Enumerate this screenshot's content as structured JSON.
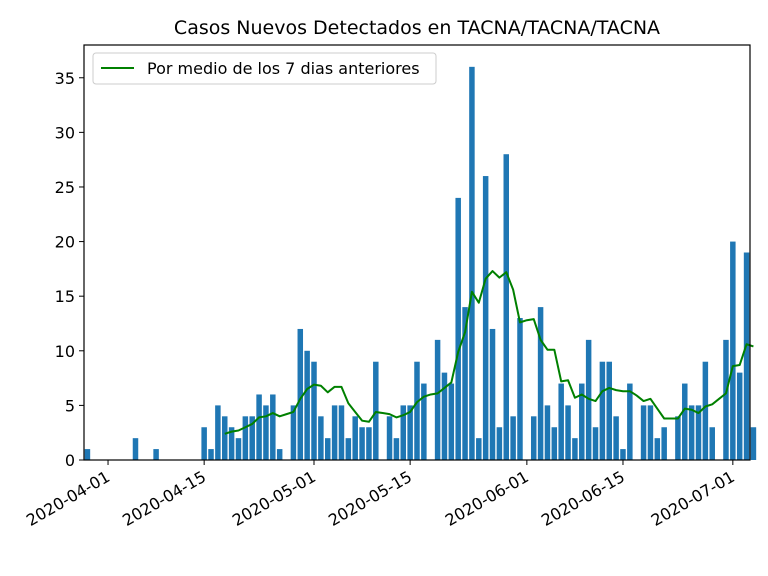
{
  "chart_data": {
    "type": "bar",
    "title": "Casos Nuevos Detectados en TACNA/TACNA/TACNA",
    "xlabel": "",
    "ylabel": "",
    "start_date": "2020-03-29",
    "end_date": "2020-07-03",
    "ylim": [
      0,
      38
    ],
    "yticks": [
      0,
      5,
      10,
      15,
      20,
      25,
      30,
      35
    ],
    "xticks": [
      "2020-04-01",
      "2020-04-15",
      "2020-05-01",
      "2020-05-15",
      "2020-06-01",
      "2020-06-15",
      "2020-07-01"
    ],
    "grid": false,
    "legend_position": "top-left",
    "series": [
      {
        "type": "bar",
        "color": "#1f77b4",
        "values": [
          1,
          0,
          0,
          0,
          0,
          0,
          0,
          2,
          0,
          0,
          1,
          0,
          0,
          0,
          0,
          0,
          0,
          3,
          1,
          5,
          4,
          3,
          2,
          4,
          4,
          6,
          5,
          6,
          1,
          0,
          5,
          12,
          10,
          9,
          4,
          2,
          5,
          5,
          2,
          4,
          3,
          3,
          9,
          0,
          4,
          2,
          5,
          5,
          9,
          7,
          0,
          11,
          8,
          7,
          24,
          14,
          36,
          2,
          26,
          12,
          3,
          28,
          4,
          13,
          0,
          4,
          14,
          5,
          3,
          7,
          5,
          2,
          7,
          11,
          3,
          9,
          9,
          4,
          1,
          7,
          0,
          5,
          5,
          2,
          3,
          0,
          4,
          7,
          5,
          5,
          9,
          3,
          0,
          11,
          20,
          8,
          19,
          3
        ]
      },
      {
        "name": "Por medio de los 7 dias anteriores",
        "type": "line",
        "color": "#008000",
        "start_index": 20,
        "values": [
          2.4,
          2.6,
          2.7,
          3.0,
          3.3,
          3.9,
          4.0,
          4.3,
          4.0,
          4.2,
          4.4,
          5.6,
          6.5,
          6.9,
          6.8,
          6.2,
          6.7,
          6.7,
          5.2,
          4.4,
          3.6,
          3.5,
          4.4,
          4.3,
          4.2,
          3.9,
          4.1,
          4.4,
          5.3,
          5.8,
          6.0,
          6.1,
          6.6,
          7.1,
          9.9,
          11.7,
          15.4,
          14.4,
          16.6,
          17.3,
          16.7,
          17.2,
          15.6,
          12.6,
          12.8,
          12.9,
          11.0,
          10.1,
          10.1,
          7.2,
          7.3,
          5.7,
          6.0,
          5.6,
          5.4,
          6.3,
          6.6,
          6.4,
          6.3,
          6.3,
          5.9,
          5.4,
          5.6,
          4.7,
          3.8,
          3.8,
          3.8,
          4.7,
          4.6,
          4.3,
          4.9,
          5.1,
          5.6,
          6.1,
          8.6,
          8.7,
          10.6,
          10.4
        ]
      }
    ]
  }
}
